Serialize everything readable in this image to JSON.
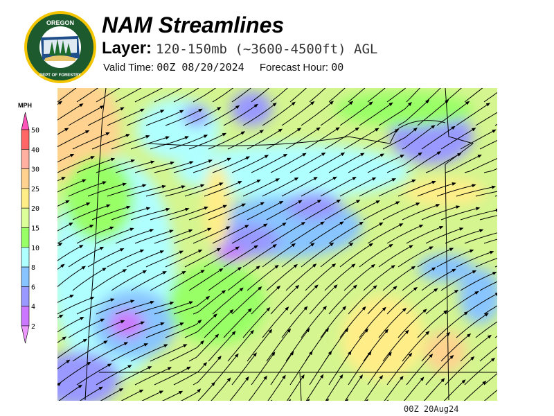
{
  "header": {
    "title": "NAM Streamlines",
    "layer_label": "Layer:",
    "layer_value": "120-150mb (~3600-4500ft) AGL",
    "valid_time_label": "Valid Time:",
    "valid_time_value": "00Z 08/20/2024",
    "forecast_hour_label": "Forecast Hour:",
    "forecast_hour_value": "00"
  },
  "logo": {
    "top_text": "OREGON",
    "bottom_text": "DEPARTMENT OF FORESTRY",
    "colors": {
      "ring": "#1d5a2e",
      "border": "#f2c500"
    }
  },
  "legend": {
    "unit": "MPH",
    "ticks": [
      "50",
      "40",
      "30",
      "25",
      "20",
      "15",
      "10",
      "8",
      "6",
      "4",
      "2"
    ],
    "colors": {
      "above_50": "#ff55bb",
      "40-50": "#ff6666",
      "30-40": "#ffb0a0",
      "25-30": "#ffd38f",
      "20-25": "#ffee88",
      "15-20": "#ddff99",
      "10-15": "#99ff66",
      "8-10": "#b0ffff",
      "6-8": "#88c4ff",
      "4-6": "#9999ff",
      "2-4": "#cc77ff",
      "below_2": "#ee99ff"
    }
  },
  "footer": {
    "stamp": "00Z 20Aug24"
  }
}
